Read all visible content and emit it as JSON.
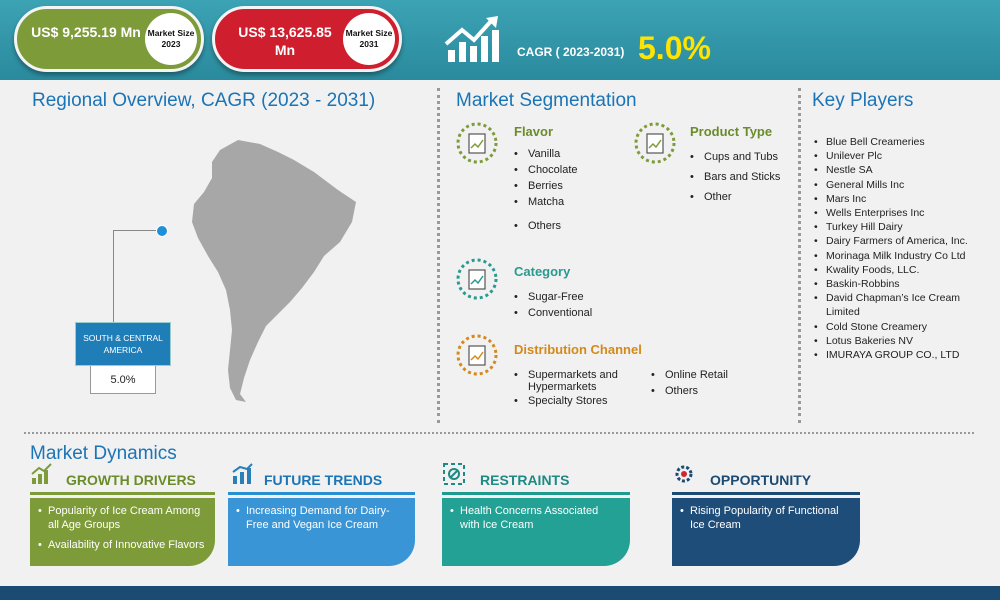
{
  "header": {
    "market_2023_value": "US$ 9,255.19 Mn",
    "market_2023_label": "Market Size 2023",
    "market_2031_value": "US$ 13,625.85 Mn",
    "market_2031_label": "Market Size 2031",
    "cagr_label": "CAGR ( 2023-2031)",
    "cagr_value": "5.0%",
    "cagr_icon": "growth-chart-icon"
  },
  "regional": {
    "title": "Regional Overview, CAGR (2023 - 2031)",
    "region_name": "SOUTH & CENTRAL AMERICA",
    "region_cagr": "5.0%"
  },
  "segmentation": {
    "title": "Market Segmentation",
    "flavor": {
      "heading": "Flavor",
      "items": [
        "Vanilla",
        "Chocolate",
        "Berries",
        "Matcha",
        "Others"
      ]
    },
    "product_type": {
      "heading": "Product Type",
      "items": [
        "Cups and Tubs",
        "Bars and Sticks",
        "Other"
      ]
    },
    "category": {
      "heading": "Category",
      "items": [
        "Sugar-Free",
        "Conventional"
      ]
    },
    "distribution": {
      "heading": "Distribution Channel",
      "items_left": [
        "Supermarkets and Hypermarkets",
        "Specialty Stores"
      ],
      "items_right": [
        "Online Retail",
        "Others"
      ]
    }
  },
  "key_players": {
    "title": "Key Players",
    "items": [
      "Blue Bell Creameries",
      "Unilever Plc",
      "Nestle SA",
      "General Mills Inc",
      "Mars Inc",
      "Wells Enterprises Inc",
      "Turkey Hill Dairy",
      "Dairy Farmers of America, Inc.",
      "Morinaga Milk Industry Co Ltd",
      "Kwality Foods, LLC.",
      "Baskin-Robbins",
      "David Chapman’s Ice Cream Limited",
      "Cold Stone Creamery",
      "Lotus Bakeries NV",
      "IMURAYA GROUP CO., LTD"
    ]
  },
  "dynamics": {
    "title": "Market Dynamics",
    "drivers": {
      "heading": "GROWTH DRIVERS",
      "items": [
        "Popularity of Ice Cream Among all Age Groups",
        "Availability of Innovative Flavors"
      ]
    },
    "trends": {
      "heading": "FUTURE TRENDS",
      "items": [
        "Increasing Demand for Dairy-Free and Vegan Ice Cream"
      ]
    },
    "restraints": {
      "heading": "RESTRAINTS",
      "items": [
        "Health Concerns Associated with Ice Cream"
      ]
    },
    "opportunity": {
      "heading": "OPPORTUNITY",
      "items": [
        "Rising Popularity of Functional Ice Cream"
      ]
    }
  },
  "colors": {
    "teal": "#2a8a9d",
    "green": "#7e9b39",
    "red": "#cf1f2e",
    "yellow": "#ffe400",
    "blue": "#1b74b5",
    "navy": "#1b4a72",
    "orange": "#d48a1a"
  }
}
